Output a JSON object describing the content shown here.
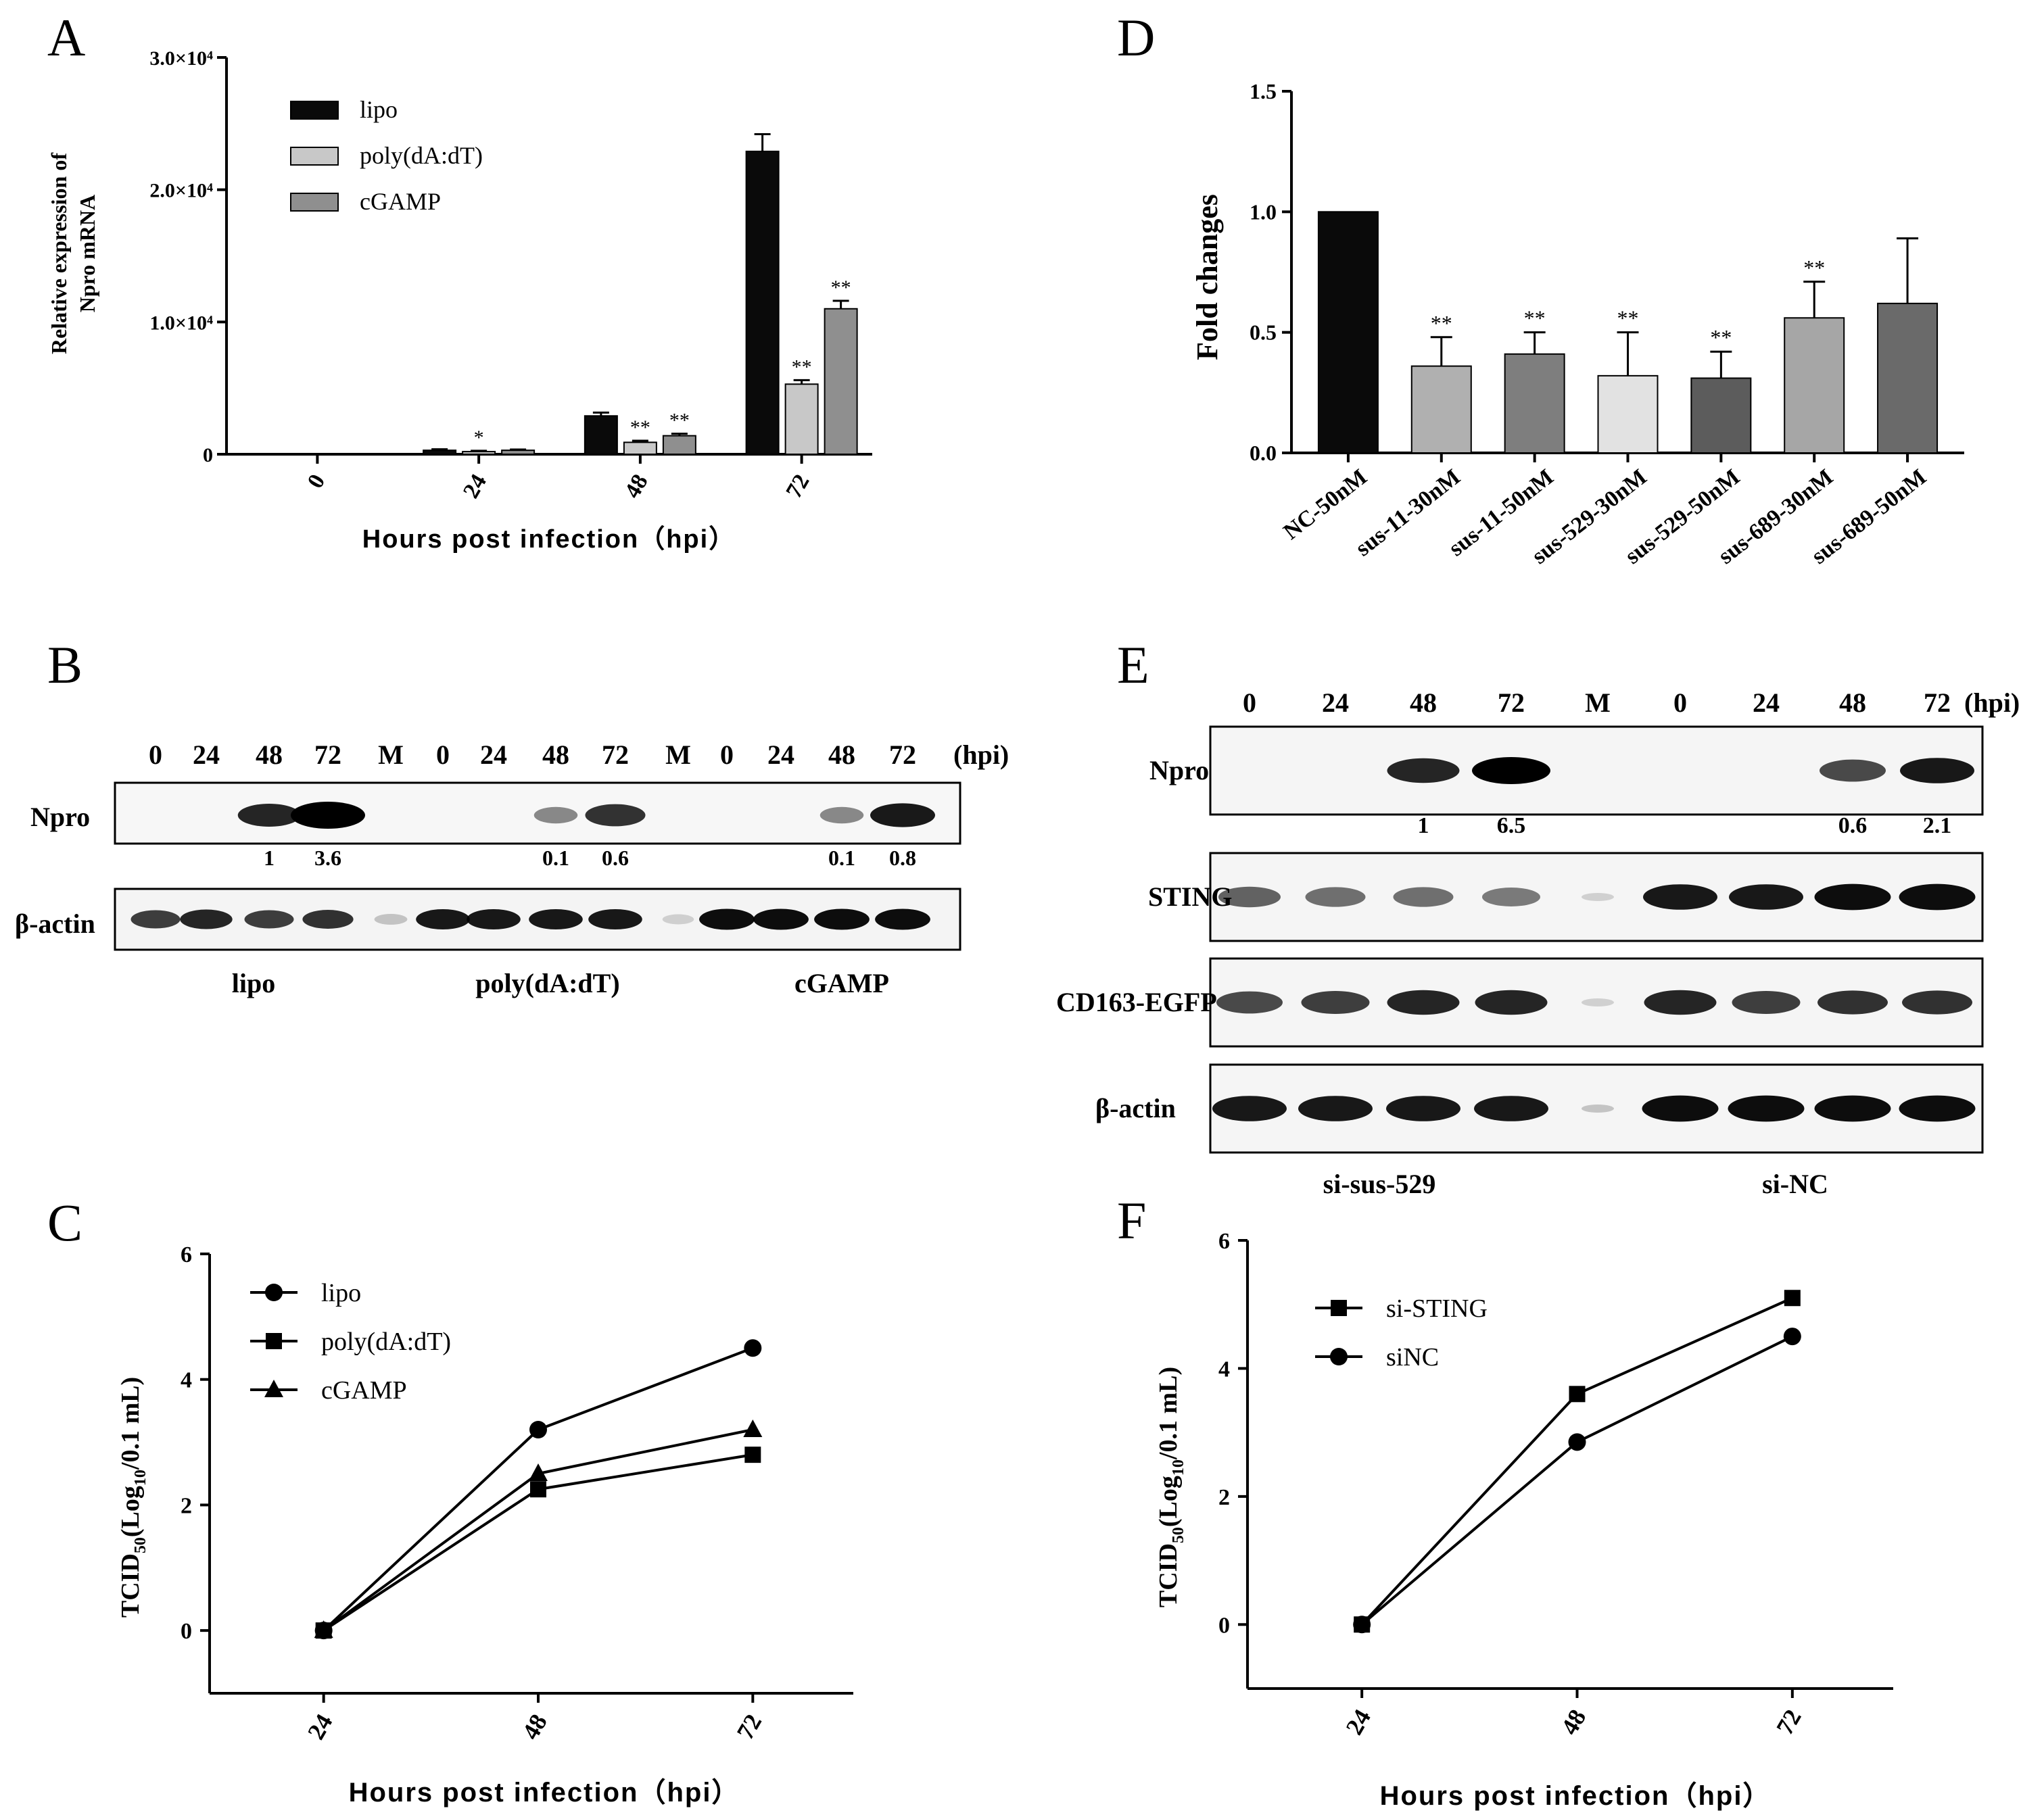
{
  "colors": {
    "black": "#0a0a0a",
    "light_gray": "#c8c8c8",
    "mid_gray": "#8f8f8f",
    "gray_a": "#b0b0b0",
    "gray_b": "#7e7e7e",
    "gray_c": "#e2e2e2",
    "gray_d": "#5c5c5c",
    "gray_e": "#a6a6a6",
    "gray_f": "#6a6a6a"
  },
  "chart_data": [
    {
      "panel": "A",
      "type": "bar",
      "ylabel_line1": "Relative expression of",
      "ylabel_line2": "Npro mRNA",
      "xlabel": "Hours post infection（hpi）",
      "categories": [
        "0",
        "24",
        "48",
        "72"
      ],
      "yticks": [
        0,
        10000,
        20000,
        30000
      ],
      "ytick_labels": [
        "0",
        "1.0×10⁴",
        "2.0×10⁴",
        "3.0×10⁴"
      ],
      "ylim": [
        0,
        30000
      ],
      "series": [
        {
          "name": "lipo",
          "color": "#0a0a0a",
          "values": [
            0,
            300,
            2900,
            22900
          ],
          "errors": [
            0,
            80,
            250,
            1300
          ],
          "stars": [
            "",
            "",
            "",
            ""
          ]
        },
        {
          "name": "poly(dA:dT)",
          "color": "#c8c8c8",
          "values": [
            0,
            200,
            900,
            5300
          ],
          "errors": [
            0,
            60,
            120,
            300
          ],
          "stars": [
            "",
            "*",
            "**",
            "**"
          ]
        },
        {
          "name": "cGAMP",
          "color": "#8f8f8f",
          "values": [
            0,
            300,
            1400,
            11000
          ],
          "errors": [
            0,
            60,
            150,
            600
          ],
          "stars": [
            "",
            "",
            "**",
            "**"
          ]
        }
      ]
    },
    {
      "panel": "D",
      "type": "bar",
      "ylabel": "Fold changes",
      "categories": [
        "NC-50nM",
        "sus-11-30nM",
        "sus-11-50nM",
        "sus-529-30nM",
        "sus-529-50nM",
        "sus-689-30nM",
        "sus-689-50nM"
      ],
      "values": [
        1.0,
        0.36,
        0.41,
        0.32,
        0.31,
        0.56,
        0.62
      ],
      "errors": [
        0,
        0.12,
        0.09,
        0.18,
        0.11,
        0.15,
        0.27
      ],
      "stars": [
        "",
        "**",
        "**",
        "**",
        "**",
        "**",
        ""
      ],
      "colors": [
        "#0a0a0a",
        "#b0b0b0",
        "#7e7e7e",
        "#e2e2e2",
        "#5c5c5c",
        "#a6a6a6",
        "#6a6a6a"
      ],
      "yticks": [
        0.0,
        0.5,
        1.0,
        1.5
      ],
      "ytick_labels": [
        "0.0",
        "0.5",
        "1.0",
        "1.5"
      ],
      "ylim": [
        0,
        1.5
      ]
    },
    {
      "panel": "C",
      "type": "line",
      "xlabel": "Hours post infection（hpi）",
      "ylabel_main": "TCID",
      "ylabel_sub": "50",
      "ylabel_rest": "(Log",
      "ylabel_sub2": "10",
      "ylabel_end": "/0.1 mL)",
      "categories": [
        "24",
        "48",
        "72"
      ],
      "yticks": [
        0,
        2,
        4,
        6
      ],
      "ytick_labels": [
        "0",
        "2",
        "4",
        "6"
      ],
      "ylim": [
        -1,
        6
      ],
      "series": [
        {
          "name": "lipo",
          "marker": "circle",
          "values": [
            0,
            3.2,
            4.5
          ]
        },
        {
          "name": "poly(dA:dT)",
          "marker": "square",
          "values": [
            0,
            2.25,
            2.8
          ]
        },
        {
          "name": "cGAMP",
          "marker": "triangle",
          "values": [
            0,
            2.5,
            3.2
          ]
        }
      ]
    },
    {
      "panel": "F",
      "type": "line",
      "xlabel": "Hours post infection（hpi）",
      "ylabel_main": "TCID",
      "ylabel_sub": "50",
      "ylabel_rest": "(Log",
      "ylabel_sub2": "10",
      "ylabel_end": "/0.1 mL)",
      "categories": [
        "24",
        "48",
        "72"
      ],
      "yticks": [
        0,
        2,
        4,
        6
      ],
      "ytick_labels": [
        "0",
        "2",
        "4",
        "6"
      ],
      "ylim": [
        -1,
        6
      ],
      "series": [
        {
          "name": "si-STING",
          "marker": "square",
          "values": [
            0,
            3.6,
            5.1
          ]
        },
        {
          "name": "siNC",
          "marker": "circle",
          "values": [
            0,
            2.85,
            4.5
          ]
        }
      ]
    }
  ],
  "panels": {
    "A": "A",
    "B": "B",
    "C": "C",
    "D": "D",
    "E": "E",
    "F": "F"
  },
  "blotB": {
    "lanes": [
      "0",
      "24",
      "48",
      "72",
      "M",
      "0",
      "24",
      "48",
      "72",
      "M",
      "0",
      "24",
      "48",
      "72"
    ],
    "unit": "(hpi)",
    "row1_label": "Npro",
    "row2_label": "β-actin",
    "quant": [
      "1",
      "3.6",
      "0.1",
      "0.6",
      "0.1",
      "0.8"
    ],
    "groups": [
      "lipo",
      "poly(dA:dT)",
      "cGAMP"
    ],
    "npro_intensity": [
      0,
      0,
      0.75,
      1.0,
      0,
      0,
      0,
      0.35,
      0.7,
      0,
      0,
      0,
      0.35,
      0.8
    ],
    "actin_intensity": [
      0.75,
      0.85,
      0.75,
      0.8,
      0.2,
      0.9,
      0.9,
      0.9,
      0.9,
      0.15,
      0.95,
      0.95,
      0.95,
      0.95
    ]
  },
  "blotE": {
    "lanes": [
      "0",
      "24",
      "48",
      "72",
      "M",
      "0",
      "24",
      "48",
      "72"
    ],
    "unit": "(hpi)",
    "rows": [
      "Npro",
      "STING",
      "CD163-EGFP",
      "β-actin"
    ],
    "quant": [
      "1",
      "6.5",
      "0.6",
      "2.1"
    ],
    "groups": [
      "si-sus-529",
      "si-NC"
    ],
    "npro_intensity": [
      0,
      0,
      0.85,
      1.0,
      0,
      0,
      0,
      0.7,
      0.9
    ],
    "sting_intensity": [
      0.6,
      0.55,
      0.55,
      0.5,
      0.15,
      0.9,
      0.9,
      0.95,
      0.95
    ],
    "cd163_intensity": [
      0.7,
      0.75,
      0.85,
      0.85,
      0.15,
      0.85,
      0.75,
      0.8,
      0.8
    ],
    "actin_intensity": [
      0.9,
      0.9,
      0.9,
      0.9,
      0.2,
      0.95,
      0.95,
      0.95,
      0.95
    ]
  }
}
